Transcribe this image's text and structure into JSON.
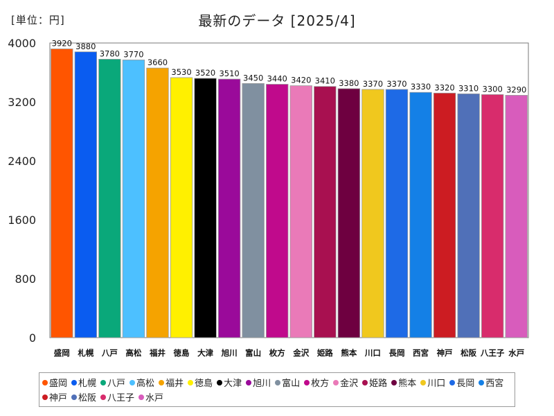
{
  "chart_data": {
    "type": "bar",
    "title": "最新のデータ [2025/4]",
    "unit_label": "[単位：円]",
    "categories": [
      "盛岡",
      "札幌",
      "八戸",
      "高松",
      "福井",
      "徳島",
      "大津",
      "旭川",
      "富山",
      "枚方",
      "金沢",
      "姫路",
      "熊本",
      "川口",
      "長岡",
      "西宮",
      "神戸",
      "松阪",
      "八王子",
      "水戸"
    ],
    "values": [
      3920,
      3880,
      3780,
      3770,
      3660,
      3530,
      3520,
      3510,
      3450,
      3440,
      3420,
      3410,
      3380,
      3370,
      3370,
      3330,
      3320,
      3310,
      3300,
      3290
    ],
    "colors": [
      "#ff5500",
      "#0a5cf0",
      "#0aa87a",
      "#4dc0ff",
      "#f5a300",
      "#fff000",
      "#000000",
      "#9a0a9a",
      "#8090a0",
      "#c00a8c",
      "#ea7ab8",
      "#a81050",
      "#6e0040",
      "#f0c81e",
      "#1e6ae6",
      "#1480e6",
      "#cc1c22",
      "#5070b8",
      "#d82c6c",
      "#d85cbc"
    ],
    "ylim": [
      0,
      4000
    ],
    "yticks": [
      0,
      800,
      1600,
      2400,
      3200,
      4000
    ],
    "grid": false,
    "legend_position": "bottom"
  }
}
